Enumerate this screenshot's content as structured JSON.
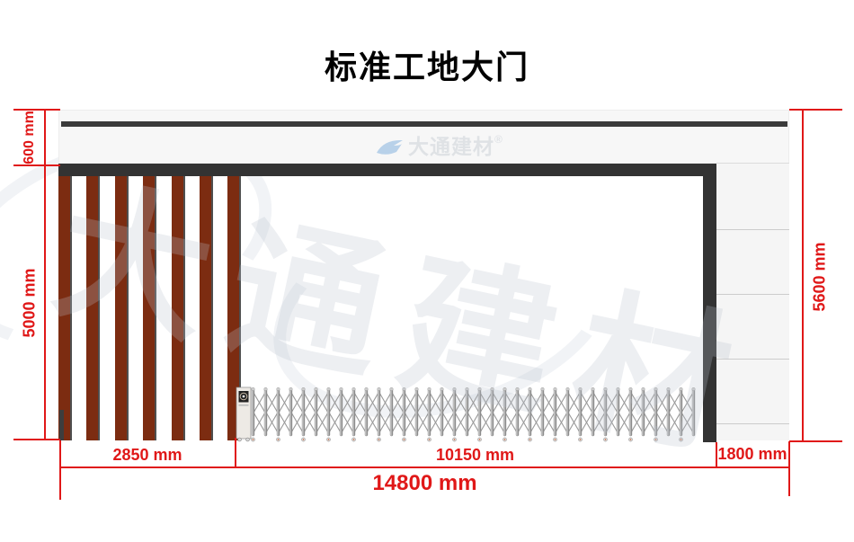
{
  "title": "标准工地大门",
  "brand": {
    "logo_text": "大通建材",
    "registered_mark": "®",
    "watermark_text": "大通建材"
  },
  "dimensions": {
    "header_height": {
      "label": "600 mm"
    },
    "gate_height": {
      "label": "5000 mm"
    },
    "total_height": {
      "label": "5600 mm"
    },
    "slat_section_width": {
      "label": "2850 mm"
    },
    "opening_width": {
      "label": "10150 mm"
    },
    "side_panel_width": {
      "label": "1800 mm"
    },
    "total_width": {
      "label": "14800 mm"
    }
  },
  "structure": {
    "slat_count": 7,
    "side_panel_line_count": 4,
    "gate_post_count": 36,
    "gate_wheel_count": 18
  },
  "colors": {
    "dimension_red": "#e01818",
    "frame_dark": "#333333",
    "beam_dark": "#3b3b3b",
    "slat_brown": "#7c2c11",
    "header_bg": "#f7f7f7",
    "panel_bg": "#f5f5f5",
    "panel_line": "#cccccc",
    "gate_metal": "#909090",
    "logo_blue": "#8fb8e0",
    "wheel_accent": "#cc7755"
  }
}
